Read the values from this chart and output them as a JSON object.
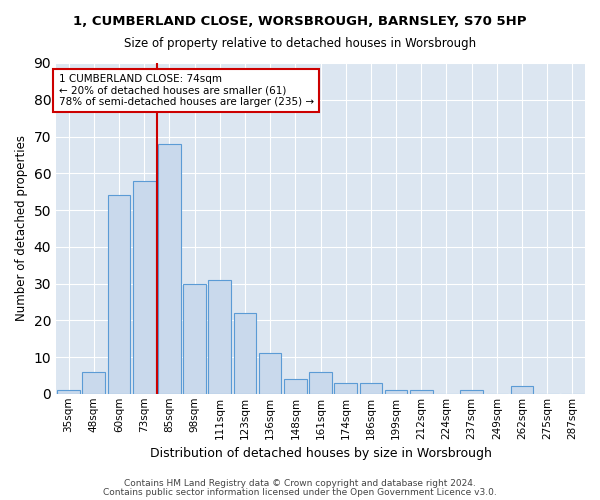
{
  "title": "1, CUMBERLAND CLOSE, WORSBROUGH, BARNSLEY, S70 5HP",
  "subtitle": "Size of property relative to detached houses in Worsbrough",
  "xlabel": "Distribution of detached houses by size in Worsbrough",
  "ylabel": "Number of detached properties",
  "categories": [
    "35sqm",
    "48sqm",
    "60sqm",
    "73sqm",
    "85sqm",
    "98sqm",
    "111sqm",
    "123sqm",
    "136sqm",
    "148sqm",
    "161sqm",
    "174sqm",
    "186sqm",
    "199sqm",
    "212sqm",
    "224sqm",
    "237sqm",
    "249sqm",
    "262sqm",
    "275sqm",
    "287sqm"
  ],
  "values": [
    1,
    6,
    54,
    58,
    68,
    30,
    31,
    22,
    11,
    4,
    6,
    3,
    3,
    1,
    1,
    0,
    1,
    0,
    2,
    0,
    0
  ],
  "bar_color": "#c9d9ec",
  "bar_edge_color": "#5b9bd5",
  "grid_color": "#ffffff",
  "bg_color": "#dce6f1",
  "vline_x": 3.5,
  "vline_color": "#cc0000",
  "annotation_text": "1 CUMBERLAND CLOSE: 74sqm\n← 20% of detached houses are smaller (61)\n78% of semi-detached houses are larger (235) →",
  "annotation_box_color": "#ffffff",
  "annotation_box_edge_color": "#cc0000",
  "footnote1": "Contains HM Land Registry data © Crown copyright and database right 2024.",
  "footnote2": "Contains public sector information licensed under the Open Government Licence v3.0.",
  "ylim": [
    0,
    90
  ],
  "yticks": [
    0,
    10,
    20,
    30,
    40,
    50,
    60,
    70,
    80,
    90
  ],
  "figsize": [
    6.0,
    5.0
  ],
  "dpi": 100
}
